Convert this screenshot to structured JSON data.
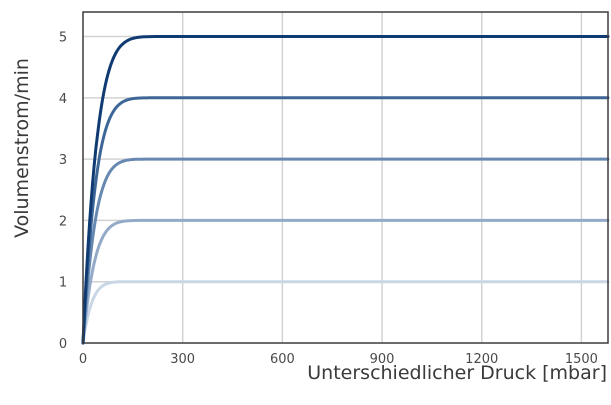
{
  "chart_data": {
    "type": "line",
    "xlabel": "Unterschiedlicher Druck [mbar]",
    "ylabel": "Volumenstrom/min",
    "xlim": [
      0,
      1580
    ],
    "ylim": [
      0,
      5.4
    ],
    "x_ticks": [
      0,
      300,
      600,
      900,
      1200,
      1500
    ],
    "y_ticks": [
      0,
      1,
      2,
      3,
      4,
      5
    ],
    "grid": true,
    "legend": "none",
    "series": [
      {
        "level": 1,
        "knee_x": 185,
        "color": "#c9d6e6"
      },
      {
        "level": 2,
        "knee_x": 240,
        "color": "#93abc9"
      },
      {
        "level": 3,
        "knee_x": 255,
        "color": "#6789b1"
      },
      {
        "level": 4,
        "knee_x": 270,
        "color": "#3e6797"
      },
      {
        "level": 5,
        "knee_x": 290,
        "color": "#0f3a72"
      }
    ]
  }
}
